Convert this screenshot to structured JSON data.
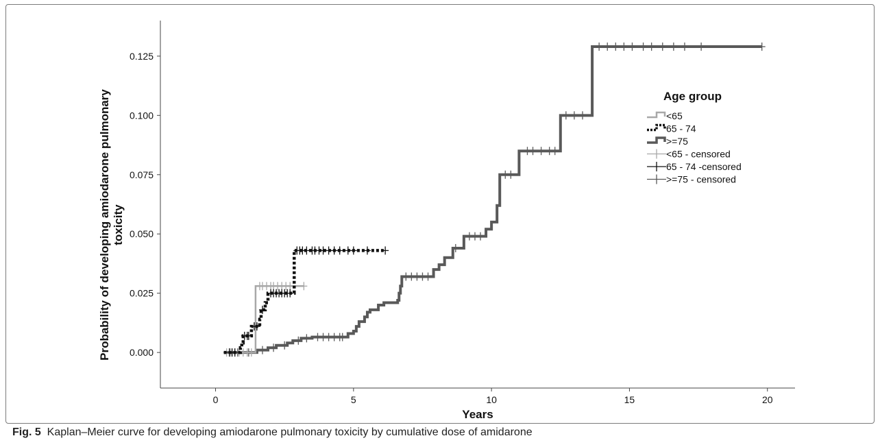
{
  "caption": {
    "label": "Fig. 5",
    "text": "Kaplan–Meier curve for developing amiodarone pulmonary toxicity by cumulative dose of amidarone"
  },
  "chart_data": {
    "type": "line",
    "subtype": "step (Kaplan-Meier cumulative incidence)",
    "xlabel": "Years",
    "ylabel": "Probability of developing amiodarone pulmonary toxicity",
    "xlim": [
      -2,
      21
    ],
    "ylim": [
      -0.015,
      0.14
    ],
    "xticks": [
      0,
      5,
      10,
      15,
      20
    ],
    "yticks": [
      0.0,
      0.025,
      0.05,
      0.075,
      0.1,
      0.125
    ],
    "xtick_labels": [
      "0",
      "5",
      "10",
      "15",
      "20"
    ],
    "ytick_labels": [
      "0.000",
      "0.025",
      "0.050",
      "0.075",
      "0.100",
      "0.125"
    ],
    "legend": {
      "title": "Age group",
      "placement": "right",
      "entries": [
        "<65",
        "65 - 74",
        ">=75",
        "<65 - censored",
        "65 - 74 -censored",
        ">=75 - censored"
      ]
    },
    "grid": false,
    "series": [
      {
        "name": "<65",
        "color": "#a8a8a8",
        "dash": "solid",
        "steps": [
          [
            0.3,
            0.0
          ],
          [
            1.45,
            0.028
          ],
          [
            3.2,
            0.028
          ]
        ],
        "censored": [
          0.4,
          0.55,
          0.7,
          0.85,
          1.0,
          1.15,
          1.3,
          1.6,
          1.7,
          1.85,
          2.0,
          2.1,
          2.25,
          2.4,
          2.55,
          2.7,
          3.2
        ]
      },
      {
        "name": "65 - 74",
        "color": "#111111",
        "dash": "dotted",
        "steps": [
          [
            0.3,
            0.0
          ],
          [
            0.9,
            0.002
          ],
          [
            0.95,
            0.004
          ],
          [
            1.0,
            0.007
          ],
          [
            1.3,
            0.011
          ],
          [
            1.6,
            0.014
          ],
          [
            1.65,
            0.018
          ],
          [
            1.8,
            0.021
          ],
          [
            1.9,
            0.025
          ],
          [
            2.85,
            0.043
          ],
          [
            6.15,
            0.043
          ]
        ],
        "censored": [
          0.5,
          0.6,
          0.7,
          1.05,
          1.15,
          1.2,
          1.4,
          1.5,
          1.7,
          2.0,
          2.1,
          2.2,
          2.3,
          2.4,
          2.5,
          2.6,
          2.7,
          2.95,
          3.05,
          3.15,
          3.3,
          3.5,
          3.6,
          3.75,
          3.9,
          4.1,
          4.3,
          4.5,
          4.8,
          5.0,
          5.5,
          6.15
        ]
      },
      {
        "name": ">=75",
        "color": "#595959",
        "dash": "solid",
        "steps": [
          [
            0.3,
            0.0
          ],
          [
            1.5,
            0.001
          ],
          [
            1.9,
            0.002
          ],
          [
            2.2,
            0.003
          ],
          [
            2.6,
            0.004
          ],
          [
            2.8,
            0.005
          ],
          [
            3.1,
            0.006
          ],
          [
            3.5,
            0.0065
          ],
          [
            4.8,
            0.008
          ],
          [
            5.0,
            0.009
          ],
          [
            5.1,
            0.011
          ],
          [
            5.2,
            0.013
          ],
          [
            5.4,
            0.015
          ],
          [
            5.5,
            0.017
          ],
          [
            5.6,
            0.018
          ],
          [
            5.9,
            0.02
          ],
          [
            6.1,
            0.021
          ],
          [
            6.6,
            0.022
          ],
          [
            6.65,
            0.025
          ],
          [
            6.7,
            0.028
          ],
          [
            6.75,
            0.032
          ],
          [
            7.9,
            0.035
          ],
          [
            8.1,
            0.037
          ],
          [
            8.3,
            0.04
          ],
          [
            8.6,
            0.044
          ],
          [
            9.0,
            0.049
          ],
          [
            9.8,
            0.052
          ],
          [
            10.0,
            0.055
          ],
          [
            10.2,
            0.062
          ],
          [
            10.3,
            0.075
          ],
          [
            11.0,
            0.085
          ],
          [
            12.5,
            0.1
          ],
          [
            13.65,
            0.129
          ],
          [
            19.8,
            0.129
          ]
        ],
        "censored": [
          0.5,
          0.8,
          1.2,
          1.7,
          2.1,
          2.5,
          3.0,
          3.3,
          3.7,
          3.9,
          4.1,
          4.3,
          4.5,
          4.6,
          6.9,
          7.1,
          7.3,
          7.5,
          7.7,
          8.7,
          9.2,
          9.4,
          9.6,
          10.5,
          10.7,
          11.3,
          11.5,
          11.8,
          12.1,
          12.3,
          12.7,
          13.0,
          13.3,
          13.9,
          14.2,
          14.5,
          14.8,
          15.1,
          15.5,
          15.8,
          16.2,
          16.6,
          17.0,
          17.6,
          19.8
        ]
      }
    ]
  }
}
